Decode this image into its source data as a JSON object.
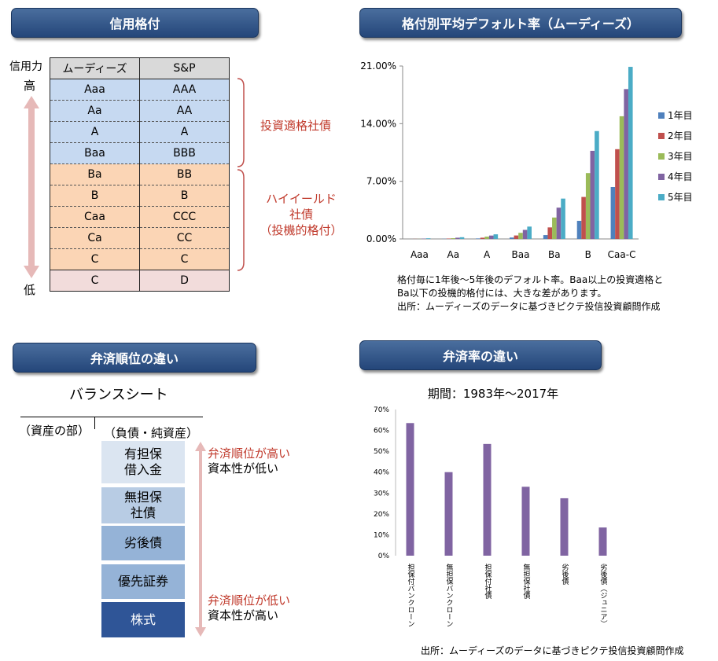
{
  "sections": {
    "credit_rating": "信用格付",
    "default_rate": "格付別平均デフォルト率（ムーディーズ）",
    "repayment_order": "弁済順位の違い",
    "recovery_rate": "弁済率の違い"
  },
  "rating_table": {
    "axis_label": "信用力",
    "high": "高",
    "low": "低",
    "col_moodys": "ムーディーズ",
    "col_sp": "S&P",
    "rows": [
      [
        "Aaa",
        "AAA"
      ],
      [
        "Aa",
        "AA"
      ],
      [
        "A",
        "A"
      ],
      [
        "Baa",
        "BBB"
      ],
      [
        "Ba",
        "BB"
      ],
      [
        "B",
        "B"
      ],
      [
        "Caa",
        "CCC"
      ],
      [
        "Ca",
        "CC"
      ],
      [
        "C",
        "C"
      ],
      [
        "C",
        "D"
      ]
    ],
    "investment_grade": "投資適格社債",
    "high_yield_1": "ハイイールド",
    "high_yield_2": "社債",
    "high_yield_3": "（投機的格付）"
  },
  "balance_sheet": {
    "title": "バランスシート",
    "assets": "（資産の部）",
    "liabilities": "（負債・純資産）",
    "items": [
      [
        "有担保",
        "借入金"
      ],
      [
        "無担保",
        "社債"
      ],
      [
        "劣後債",
        ""
      ],
      [
        "優先証券",
        ""
      ],
      [
        "株式",
        ""
      ]
    ],
    "top_note_1": "弁済順位が高い",
    "top_note_2": "資本性が低い",
    "bottom_note_1": "弁済順位が低い",
    "bottom_note_2": "資本性が高い"
  },
  "notes": {
    "default_1": "格付毎に1年後～5年後のデフォルト率。Baa以上の投資適格と",
    "default_2": "Ba以下の投機的格付には、大きな差があります。",
    "default_3": "出所：ムーディーズのデータに基づきピクテ投信投資顧問作成",
    "recovery_source": "出所：ムーディーズのデータに基づきピクテ投信投資顧問作成"
  },
  "colors": {
    "header_blue": "#2f5289",
    "series": [
      "#4f81bd",
      "#c0504d",
      "#9bbb59",
      "#8064a2",
      "#4bacc6"
    ],
    "recovery_bar": "#8064a2",
    "bracket": "#c0504d",
    "arrow": "#e6b9b8"
  },
  "chart_data": [
    {
      "type": "bar",
      "title": "",
      "categories": [
        "Aaa",
        "Aa",
        "A",
        "Baa",
        "Ba",
        "B",
        "Caa-C"
      ],
      "ylim": [
        0,
        21
      ],
      "yticks": [
        "0.00%",
        "7.00%",
        "14.00%",
        "21.00%"
      ],
      "legend_position": "right",
      "series": [
        {
          "name": "1年目",
          "values": [
            0.0,
            0.02,
            0.06,
            0.17,
            0.47,
            2.2,
            6.3
          ]
        },
        {
          "name": "2年目",
          "values": [
            0.01,
            0.05,
            0.15,
            0.42,
            1.4,
            5.1,
            10.9
          ]
        },
        {
          "name": "3年目",
          "values": [
            0.01,
            0.09,
            0.28,
            0.74,
            2.6,
            8.0,
            14.9
          ]
        },
        {
          "name": "4年目",
          "values": [
            0.04,
            0.15,
            0.41,
            1.1,
            3.8,
            10.7,
            18.2
          ]
        },
        {
          "name": "5年目",
          "values": [
            0.08,
            0.21,
            0.56,
            1.5,
            4.9,
            13.1,
            20.9
          ]
        }
      ]
    },
    {
      "type": "bar",
      "title": "期間：1983年～2017年",
      "categories": [
        "担保付バンクローン",
        "無担保バンクローン",
        "担保付社債",
        "無担保社債",
        "劣後債",
        "劣後債（ジュニア）"
      ],
      "values": [
        63.5,
        40,
        53.5,
        33,
        27.5,
        13.5
      ],
      "ylim": [
        0,
        70
      ],
      "yticks": [
        "0%",
        "10%",
        "20%",
        "30%",
        "40%",
        "50%",
        "60%",
        "70%"
      ],
      "grid": false
    }
  ]
}
